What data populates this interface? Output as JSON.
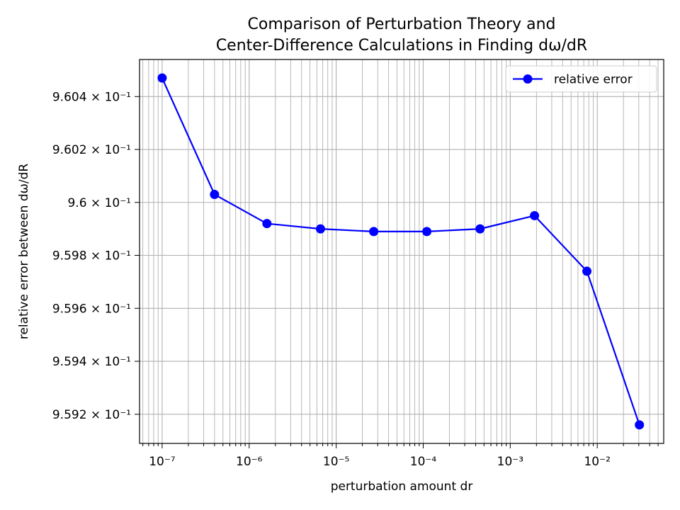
{
  "chart_data": {
    "type": "line",
    "title_line1": "Comparison of Perturbation Theory and",
    "title_line2": "Center-Difference Calculations in Finding dω/dR",
    "xlabel": "perturbation amount dr",
    "ylabel": "relative error between dω/dR",
    "x_scale": "log",
    "y_scale": "log",
    "xlim": [
      5.5e-08,
      0.058
    ],
    "ylim": [
      0.95909,
      0.96054
    ],
    "grid": true,
    "legend_position": "upper right",
    "series": [
      {
        "name": "relative error",
        "color": "#0000ff",
        "marker": "circle",
        "x": [
          1e-07,
          4e-07,
          1.6e-06,
          6.6e-06,
          2.7e-05,
          0.00011,
          0.00045,
          0.0019,
          0.0076,
          0.0305
        ],
        "y": [
          0.96047,
          0.96003,
          0.95992,
          0.9599,
          0.95989,
          0.95989,
          0.9599,
          0.95995,
          0.95974,
          0.95916
        ]
      }
    ],
    "x_ticks": [
      {
        "value": 1e-07,
        "label": "10⁻⁷"
      },
      {
        "value": 1e-06,
        "label": "10⁻⁶"
      },
      {
        "value": 1e-05,
        "label": "10⁻⁵"
      },
      {
        "value": 0.0001,
        "label": "10⁻⁴"
      },
      {
        "value": 0.001,
        "label": "10⁻³"
      },
      {
        "value": 0.01,
        "label": "10⁻²"
      }
    ],
    "y_ticks": [
      {
        "value": 0.9592,
        "label": "9.592 × 10⁻¹"
      },
      {
        "value": 0.9594,
        "label": "9.594 × 10⁻¹"
      },
      {
        "value": 0.9596,
        "label": "9.596 × 10⁻¹"
      },
      {
        "value": 0.9598,
        "label": "9.598 × 10⁻¹"
      },
      {
        "value": 0.96,
        "label": "9.6 × 10⁻¹"
      },
      {
        "value": 0.9602,
        "label": "9.602 × 10⁻¹"
      },
      {
        "value": 0.9604,
        "label": "9.604 × 10⁻¹"
      }
    ]
  }
}
